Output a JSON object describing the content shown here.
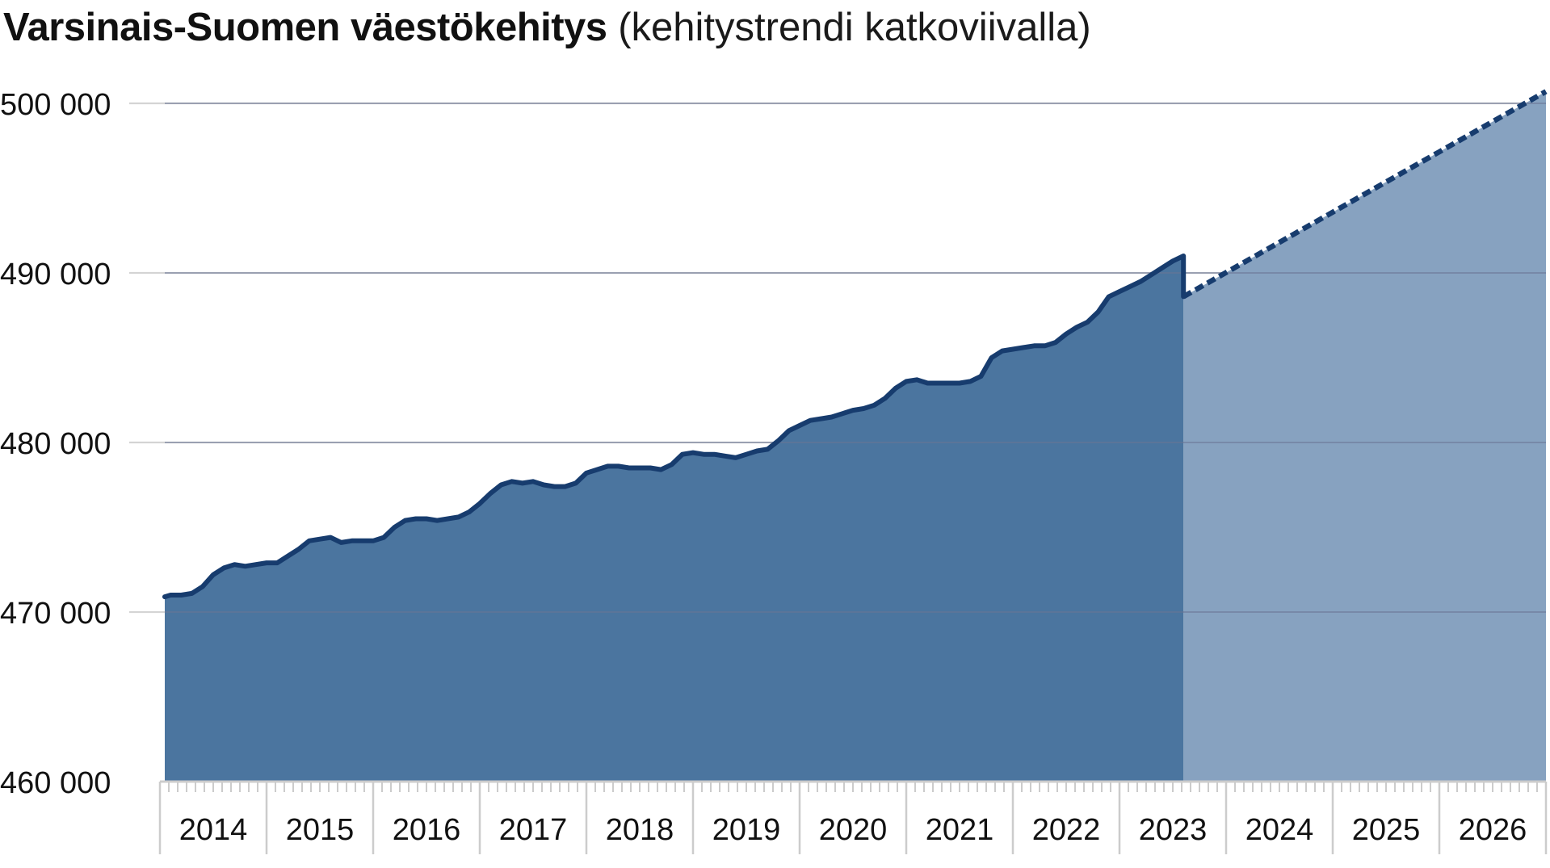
{
  "title": "Varsinais-Suomen väestökehitys",
  "subtitle": "(kehitystrendi katkoviivalla)",
  "colors": {
    "actual_fill": "#4b759f",
    "trend_fill": "#87a2c0",
    "line": "#173c6e",
    "grid": "#d4d4d4",
    "grid_over_fill": "#6a7493",
    "axis": "#cccccc"
  },
  "chart_data": {
    "type": "area",
    "title": "Varsinais-Suomen väestökehitys",
    "subtitle": "(kehitystrendi katkoviivalla)",
    "xlabel": "",
    "ylabel": "",
    "ylim": [
      460000,
      500000
    ],
    "xlim": [
      2014.0,
      2027.3
    ],
    "yticks": [
      460000,
      470000,
      480000,
      490000,
      500000
    ],
    "ytick_labels": [
      "460 000",
      "470 000",
      "480 000",
      "490 000",
      "500 000"
    ],
    "xtick_labels": [
      "2014",
      "2015",
      "2016",
      "2017",
      "2018",
      "2019",
      "2020",
      "2021",
      "2022",
      "2023",
      "2024",
      "2025",
      "2026"
    ],
    "grid": true,
    "series": [
      {
        "style": "solid",
        "x": [
          2014.0,
          2014.1,
          2014.2,
          2014.3,
          2014.4,
          2014.5,
          2014.6,
          2014.7,
          2014.8,
          2014.9,
          2015.0,
          2015.1,
          2015.2,
          2015.3,
          2015.4,
          2015.5,
          2015.6,
          2015.7,
          2015.8,
          2015.9,
          2016.0,
          2016.1,
          2016.2,
          2016.3,
          2016.4,
          2016.5,
          2016.6,
          2016.7,
          2016.8,
          2016.9,
          2017.0,
          2017.1,
          2017.2,
          2017.3,
          2017.4,
          2017.5,
          2017.6,
          2017.7,
          2017.8,
          2017.9,
          2018.0,
          2018.1,
          2018.2,
          2018.3,
          2018.4,
          2018.5,
          2018.6,
          2018.7,
          2018.8,
          2018.9,
          2019.0,
          2019.1,
          2019.2,
          2019.3,
          2019.4,
          2019.5,
          2019.6,
          2019.7,
          2019.8,
          2019.9,
          2020.0,
          2020.1,
          2020.2,
          2020.3,
          2020.4,
          2020.5,
          2020.6,
          2020.7,
          2020.8,
          2020.9,
          2021.0,
          2021.1,
          2021.2,
          2021.3,
          2021.4,
          2021.5,
          2021.6,
          2021.7,
          2021.8,
          2021.9,
          2022.0,
          2022.1,
          2022.2,
          2022.3,
          2022.4,
          2022.5,
          2022.6,
          2022.7,
          2022.8,
          2022.9,
          2023.0,
          2023.1,
          2023.2,
          2023.3,
          2023.4,
          2023.5,
          2023.6
        ],
        "values": [
          470900,
          471000,
          471000,
          471100,
          471500,
          472200,
          472600,
          472800,
          472700,
          472800,
          472900,
          472900,
          473300,
          473700,
          474200,
          474300,
          474400,
          474100,
          474200,
          474200,
          474200,
          474400,
          475000,
          475400,
          475500,
          475500,
          475400,
          475500,
          475600,
          475900,
          476400,
          477000,
          477500,
          477700,
          477600,
          477700,
          477500,
          477400,
          477400,
          477600,
          478200,
          478400,
          478600,
          478600,
          478500,
          478500,
          478500,
          478400,
          478700,
          479300,
          479400,
          479300,
          479300,
          479200,
          479100,
          479300,
          479500,
          479600,
          480100,
          480700,
          481000,
          481300,
          481400,
          481500,
          481700,
          481900,
          482000,
          482200,
          482600,
          483200,
          483600,
          483700,
          483500,
          483500,
          483500,
          483500,
          483600,
          483900,
          485000,
          485400,
          485500,
          485600,
          485700,
          485700,
          485900,
          486400,
          486800,
          487100,
          487700,
          488600,
          488900,
          489200,
          489500,
          489900,
          490300,
          490700,
          491000
        ]
      },
      {
        "style": "dashed",
        "x": [
          2023.6,
          2027.3
        ],
        "values": [
          488600,
          500700
        ]
      }
    ]
  }
}
